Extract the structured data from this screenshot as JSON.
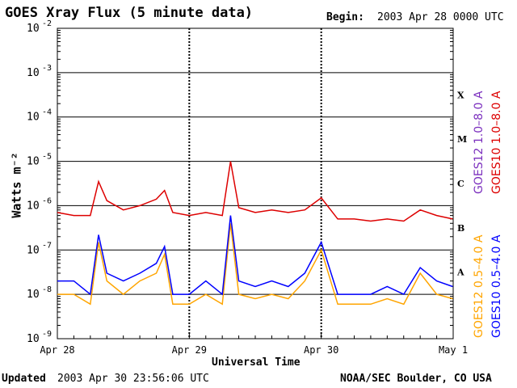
{
  "header": {
    "title": "GOES Xray Flux (5 minute data)",
    "begin_label": "Begin:",
    "begin_value": "2003 Apr 28 0000 UTC"
  },
  "footer": {
    "updated_label": "Updated",
    "updated_value": "2003 Apr 30 23:56:06 UTC",
    "credit": "NOAA/SEC Boulder, CO USA"
  },
  "colors": {
    "goes12_long": "#7b2fbe",
    "goes10_long": "#dd0000",
    "goes12_short": "#ffa500",
    "goes10_short": "#0000ff"
  },
  "chart_data": {
    "type": "line",
    "title": "GOES Xray Flux (5 minute data)",
    "xlabel": "Universal Time",
    "ylabel": "Watts m⁻²",
    "y_scale": "log",
    "ylim": [
      1e-09,
      0.01
    ],
    "xlim": [
      "2003-04-28 00:00",
      "2003-05-01 00:00"
    ],
    "y_ticks": [
      {
        "base": "10",
        "exp": "-9"
      },
      {
        "base": "10",
        "exp": "-8"
      },
      {
        "base": "10",
        "exp": "-7"
      },
      {
        "base": "10",
        "exp": "-6"
      },
      {
        "base": "10",
        "exp": "-5"
      },
      {
        "base": "10",
        "exp": "-4"
      },
      {
        "base": "10",
        "exp": "-3"
      },
      {
        "base": "10",
        "exp": "-2"
      }
    ],
    "x_ticks": [
      "Apr 28",
      "Apr 29",
      "Apr 30",
      "May 1"
    ],
    "flare_classes": [
      "A",
      "B",
      "C",
      "M",
      "X"
    ],
    "legend": [
      {
        "label": "GOES12 1.0–8.0 A",
        "color_key": "goes12_long"
      },
      {
        "label": "GOES10 1.0–8.0 A",
        "color_key": "goes10_long"
      },
      {
        "label": "GOES12 0.5–4.0 A",
        "color_key": "goes12_short"
      },
      {
        "label": "GOES10 0.5–4.0 A",
        "color_key": "goes10_short"
      }
    ],
    "grid": true,
    "series": [
      {
        "name": "GOES10 1.0–8.0 A",
        "color_key": "goes10_long",
        "x": [
          "2003-04-28 00:00",
          "2003-04-28 03:00",
          "2003-04-28 06:00",
          "2003-04-28 07:30",
          "2003-04-28 09:00",
          "2003-04-28 12:00",
          "2003-04-28 15:00",
          "2003-04-28 18:00",
          "2003-04-28 19:30",
          "2003-04-28 21:00",
          "2003-04-29 00:00",
          "2003-04-29 03:00",
          "2003-04-29 06:00",
          "2003-04-29 07:30",
          "2003-04-29 09:00",
          "2003-04-29 12:00",
          "2003-04-29 15:00",
          "2003-04-29 18:00",
          "2003-04-29 21:00",
          "2003-04-30 00:00",
          "2003-04-30 03:00",
          "2003-04-30 06:00",
          "2003-04-30 09:00",
          "2003-04-30 12:00",
          "2003-04-30 15:00",
          "2003-04-30 18:00",
          "2003-04-30 21:00",
          "2003-04-30 23:55"
        ],
        "y": [
          7e-07,
          6e-07,
          6e-07,
          3.5e-06,
          1.3e-06,
          8e-07,
          1e-06,
          1.4e-06,
          2.2e-06,
          7e-07,
          6e-07,
          7e-07,
          6e-07,
          1e-05,
          9e-07,
          7e-07,
          8e-07,
          7e-07,
          8e-07,
          1.5e-06,
          5e-07,
          5e-07,
          4.5e-07,
          5e-07,
          4.5e-07,
          8e-07,
          6e-07,
          5e-07
        ]
      },
      {
        "name": "GOES10 0.5–4.0 A",
        "color_key": "goes10_short",
        "x": [
          "2003-04-28 00:00",
          "2003-04-28 03:00",
          "2003-04-28 06:00",
          "2003-04-28 07:30",
          "2003-04-28 09:00",
          "2003-04-28 12:00",
          "2003-04-28 15:00",
          "2003-04-28 18:00",
          "2003-04-28 19:30",
          "2003-04-28 21:00",
          "2003-04-29 00:00",
          "2003-04-29 03:00",
          "2003-04-29 06:00",
          "2003-04-29 07:30",
          "2003-04-29 09:00",
          "2003-04-29 12:00",
          "2003-04-29 15:00",
          "2003-04-29 18:00",
          "2003-04-29 21:00",
          "2003-04-30 00:00",
          "2003-04-30 03:00",
          "2003-04-30 06:00",
          "2003-04-30 09:00",
          "2003-04-30 12:00",
          "2003-04-30 15:00",
          "2003-04-30 18:00",
          "2003-04-30 21:00",
          "2003-04-30 23:55"
        ],
        "y": [
          2e-08,
          2e-08,
          1e-08,
          2.2e-07,
          3e-08,
          2e-08,
          3e-08,
          5e-08,
          1.2e-07,
          1e-08,
          1e-08,
          2e-08,
          1e-08,
          6e-07,
          2e-08,
          1.5e-08,
          2e-08,
          1.5e-08,
          3e-08,
          1.5e-07,
          1e-08,
          1e-08,
          1e-08,
          1.5e-08,
          1e-08,
          4e-08,
          2e-08,
          1.5e-08
        ]
      },
      {
        "name": "GOES12 0.5–4.0 A",
        "color_key": "goes12_short",
        "x": [
          "2003-04-28 00:00",
          "2003-04-28 03:00",
          "2003-04-28 06:00",
          "2003-04-28 07:30",
          "2003-04-28 09:00",
          "2003-04-28 12:00",
          "2003-04-28 15:00",
          "2003-04-28 18:00",
          "2003-04-28 19:30",
          "2003-04-28 21:00",
          "2003-04-29 00:00",
          "2003-04-29 03:00",
          "2003-04-29 06:00",
          "2003-04-29 07:30",
          "2003-04-29 09:00",
          "2003-04-29 12:00",
          "2003-04-29 15:00",
          "2003-04-29 18:00",
          "2003-04-29 21:00",
          "2003-04-30 00:00",
          "2003-04-30 03:00",
          "2003-04-30 06:00",
          "2003-04-30 09:00",
          "2003-04-30 12:00",
          "2003-04-30 15:00",
          "2003-04-30 18:00",
          "2003-04-30 21:00",
          "2003-04-30 23:55"
        ],
        "y": [
          1e-08,
          1e-08,
          6e-09,
          1.5e-07,
          2e-08,
          1e-08,
          2e-08,
          3e-08,
          8e-08,
          6e-09,
          6e-09,
          1e-08,
          6e-09,
          4e-07,
          1e-08,
          8e-09,
          1e-08,
          8e-09,
          2e-08,
          1e-07,
          6e-09,
          6e-09,
          6e-09,
          8e-09,
          6e-09,
          3e-08,
          1e-08,
          8e-09
        ]
      }
    ]
  }
}
